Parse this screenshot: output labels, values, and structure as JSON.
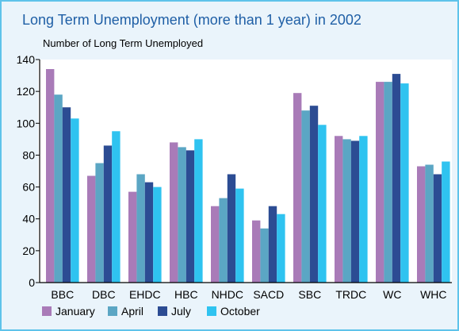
{
  "chart_data": {
    "type": "bar",
    "title": "Long Term Unemployment (more than 1 year) in 2002",
    "ylabel": "Number of Long Term Unemployed",
    "xlabel": "",
    "ylim": [
      0,
      140
    ],
    "yticks": [
      0,
      20,
      40,
      60,
      80,
      100,
      120,
      140
    ],
    "categories": [
      "BBC",
      "DBC",
      "EHDC",
      "HBC",
      "NHDC",
      "SACD",
      "SBC",
      "TRDC",
      "WC",
      "WHC"
    ],
    "series": [
      {
        "name": "January",
        "color": "#a97bb8",
        "values": [
          134,
          67,
          57,
          88,
          48,
          39,
          119,
          92,
          126,
          73
        ]
      },
      {
        "name": "April",
        "color": "#5ba6c4",
        "values": [
          118,
          75,
          68,
          85,
          53,
          34,
          108,
          90,
          126,
          74
        ]
      },
      {
        "name": "July",
        "color": "#2c4c93",
        "values": [
          110,
          86,
          63,
          83,
          68,
          48,
          111,
          89,
          131,
          68
        ]
      },
      {
        "name": "October",
        "color": "#2fc3f0",
        "values": [
          103,
          95,
          60,
          90,
          59,
          43,
          99,
          92,
          125,
          76
        ]
      }
    ],
    "grid": false,
    "legend": "bottom-left"
  }
}
